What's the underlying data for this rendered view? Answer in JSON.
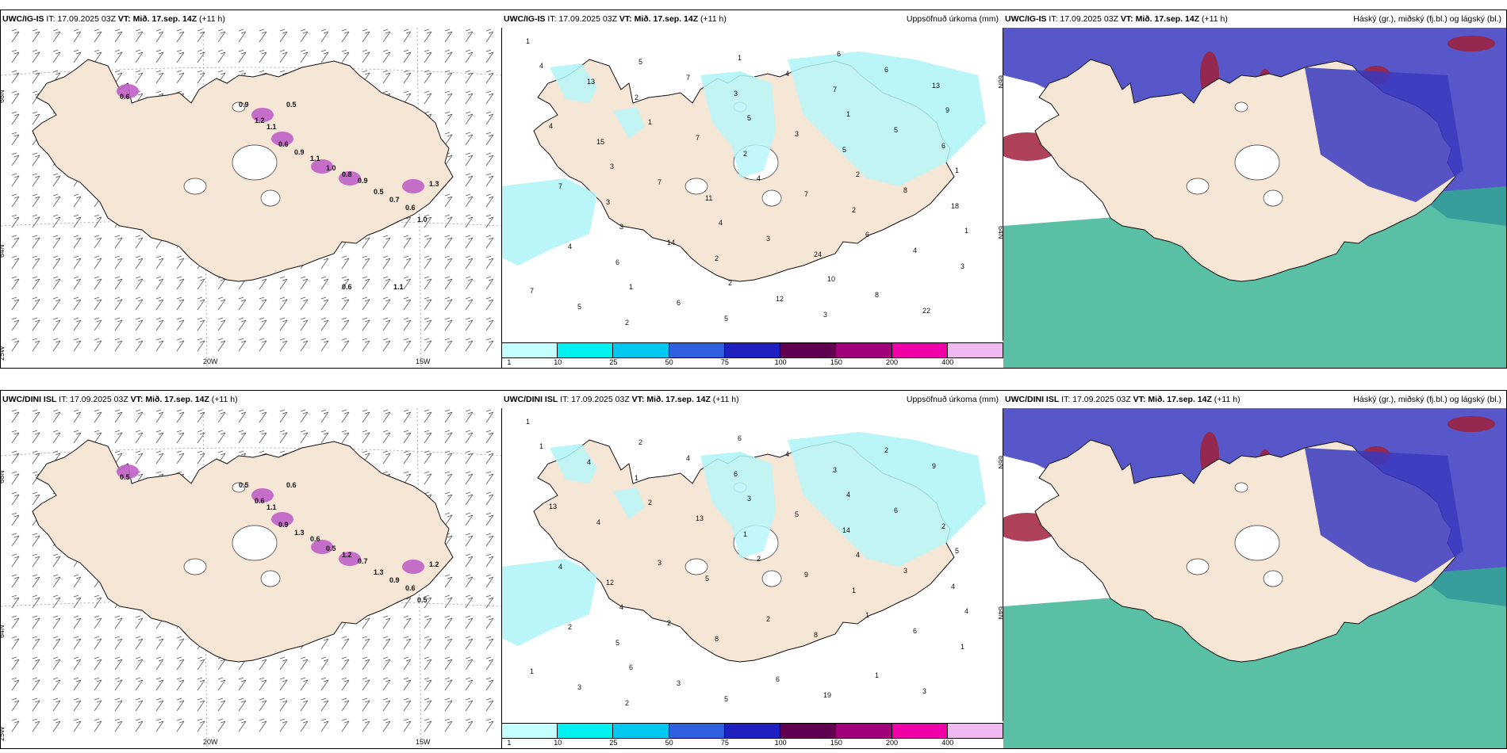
{
  "panels": [
    {
      "id": "wind-igis",
      "model": "UWC/IG-IS",
      "it_label": "IT:",
      "it_value": "17.09.2025 03Z",
      "vt_label": "VT:",
      "vt_value": "Mið. 17.sep. 14Z",
      "lead": "(+11 h)",
      "right_title": "",
      "lat_labels": [
        "66N",
        "64N",
        "25W"
      ],
      "lon_labels": [
        "20W",
        "15W"
      ],
      "snow_values": [
        "0.6",
        "1.2",
        "1.1",
        "0.6",
        "0.9",
        "1.1",
        "1.0",
        "0.8",
        "0.9",
        "0.5",
        "0.7",
        "0.6",
        "1.0",
        "1.3",
        "0.9",
        "0.5",
        "0.6",
        "1.1"
      ]
    },
    {
      "id": "precip-igis",
      "model": "UWC/IG-IS",
      "it_label": "IT:",
      "it_value": "17.09.2025 03Z",
      "vt_label": "VT:",
      "vt_value": "Mið. 17.sep. 14Z",
      "lead": "(+11 h)",
      "right_title": "Uppsöfnuð úrkoma (mm)",
      "lat_labels": [
        "66N",
        "64N"
      ],
      "precip_values": [
        "1",
        "2",
        "2",
        "2",
        "3",
        "2",
        "3",
        "5",
        "18",
        "6",
        "5",
        "7",
        "6",
        "3",
        "2",
        "3",
        "13",
        "15",
        "11",
        "24",
        "22",
        "13",
        "7",
        "7",
        "4",
        "5",
        "7",
        "3",
        "8",
        "4",
        "6",
        "4",
        "5",
        "7",
        "14",
        "12",
        "6",
        "4",
        "7",
        "3",
        "8",
        "4",
        "1",
        "4",
        "6",
        "7",
        "5",
        "5",
        "2",
        "1",
        "1",
        "1",
        "1",
        "1",
        "3",
        "2",
        "6",
        "9",
        "3",
        "4",
        "10"
      ]
    },
    {
      "id": "cloud-igis",
      "model": "UWC/IG-IS",
      "it_label": "IT:",
      "it_value": "17.09.2025 03Z",
      "vt_label": "VT:",
      "vt_value": "Mið. 17.sep. 14Z",
      "lead": "(+11 h)",
      "right_title": "Háský (gr.), miðský (fj.bl.) og lágský (bl.)"
    },
    {
      "id": "wind-dini",
      "model": "UWC/DINI ISL",
      "it_label": "IT:",
      "it_value": "17.09.2025 03Z",
      "vt_label": "VT:",
      "vt_value": "Mið. 17.sep. 14Z",
      "lead": "(+11 h)",
      "right_title": "",
      "lat_labels": [
        "66N",
        "64N",
        "25W"
      ],
      "lon_labels": [
        "20W",
        "15W"
      ],
      "snow_values": [
        "0.5",
        "0.6",
        "1.1",
        "0.9",
        "1.3",
        "0.6",
        "0.5",
        "1.2",
        "0.7",
        "1.3",
        "0.9",
        "0.6",
        "0.5",
        "1.2",
        "0.5",
        "0.6"
      ]
    },
    {
      "id": "precip-dini",
      "model": "UWC/DINI ISL",
      "it_label": "IT:",
      "it_value": "17.09.2025 03Z",
      "vt_label": "VT:",
      "vt_value": "Mið. 17.sep. 14Z",
      "lead": "(+11 h)",
      "right_title": "Uppsöfnuð úrkoma (mm)",
      "lat_labels": [
        "66N",
        "64N"
      ],
      "precip_values": [
        "1",
        "1",
        "1",
        "1",
        "1",
        "2",
        "6",
        "14",
        "4",
        "5",
        "5",
        "3",
        "2",
        "12",
        "8",
        "19",
        "9",
        "4",
        "5",
        "8",
        "3",
        "4",
        "13",
        "9",
        "6",
        "3",
        "4",
        "5",
        "3",
        "2",
        "3",
        "4",
        "6",
        "4",
        "2",
        "6",
        "2",
        "13",
        "3",
        "2",
        "1",
        "1",
        "2",
        "2",
        "1",
        "1",
        "2",
        "3",
        "4",
        "4",
        "6",
        "6",
        "4",
        "5",
        "4"
      ]
    },
    {
      "id": "cloud-dini",
      "model": "UWC/DINI ISL",
      "it_label": "IT:",
      "it_value": "17.09.2025 03Z",
      "vt_label": "VT:",
      "vt_value": "Mið. 17.sep. 14Z",
      "lead": "(+11 h)",
      "right_title": "Háský (gr.), miðský (fj.bl.) og lágský (bl.)"
    }
  ],
  "precip_legend": {
    "ticks": [
      "1",
      "10",
      "25",
      "50",
      "75",
      "100",
      "150",
      "200",
      "400"
    ],
    "colors": [
      "#c6ffff",
      "#00f0f0",
      "#00c8f0",
      "#3060e0",
      "#2020c0",
      "#600050",
      "#a0007a",
      "#f000a8",
      "#f0b8f0"
    ]
  },
  "colors": {
    "land": "#f5e6d6",
    "precip_light": "#b8f6f8",
    "snow": "#c060c8",
    "low_cloud": "#30b090",
    "mid_cloud": "#3a3ac0",
    "high_cloud": "#a0203a"
  }
}
